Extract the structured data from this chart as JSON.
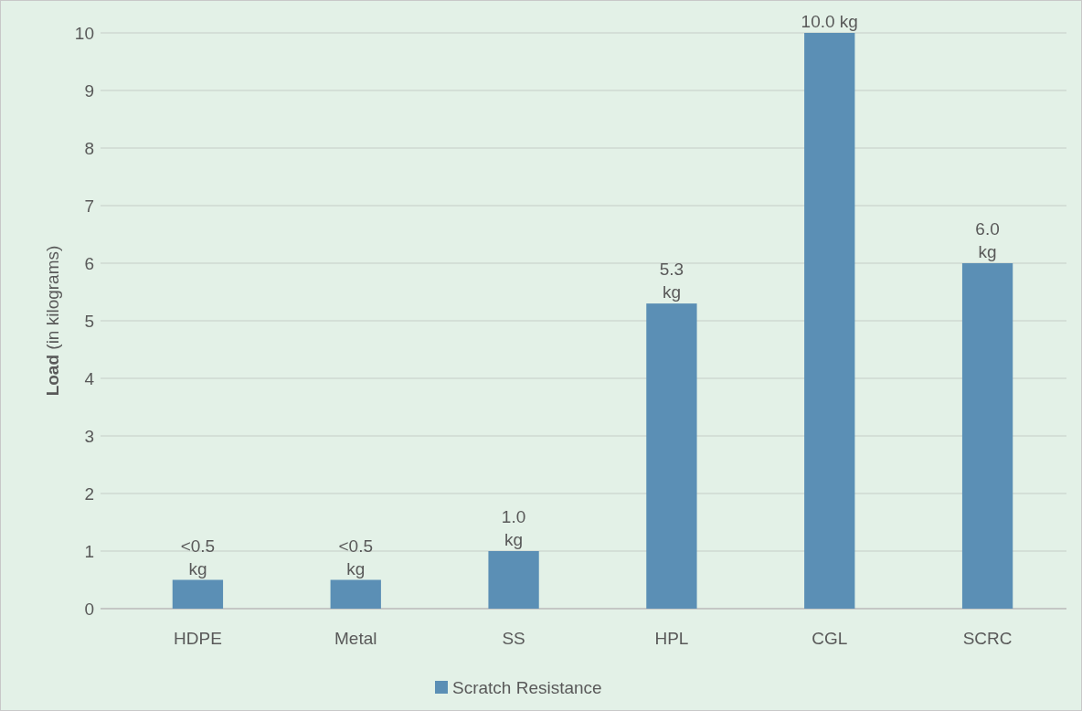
{
  "chart_data": {
    "type": "bar",
    "ylabel": "Load (in kilograms)",
    "categories": [
      "HDPE",
      "Metal",
      "SS",
      "HPL",
      "CGL",
      "SCRC"
    ],
    "series": [
      {
        "name": "Scratch Resistance",
        "color": "#5b8fb5",
        "values": [
          0.5,
          0.5,
          1.0,
          5.3,
          10.0,
          6.0
        ],
        "value_labels": [
          "<0.5 kg",
          "<0.5 kg",
          "1.0 kg",
          "5.3 kg",
          "10.0 kg",
          "6.0 kg"
        ]
      }
    ],
    "ylim": [
      0,
      10
    ],
    "yticks": [
      0,
      1,
      2,
      3,
      4,
      5,
      6,
      7,
      8,
      9,
      10
    ],
    "grid": "y",
    "legend": "bottom"
  }
}
